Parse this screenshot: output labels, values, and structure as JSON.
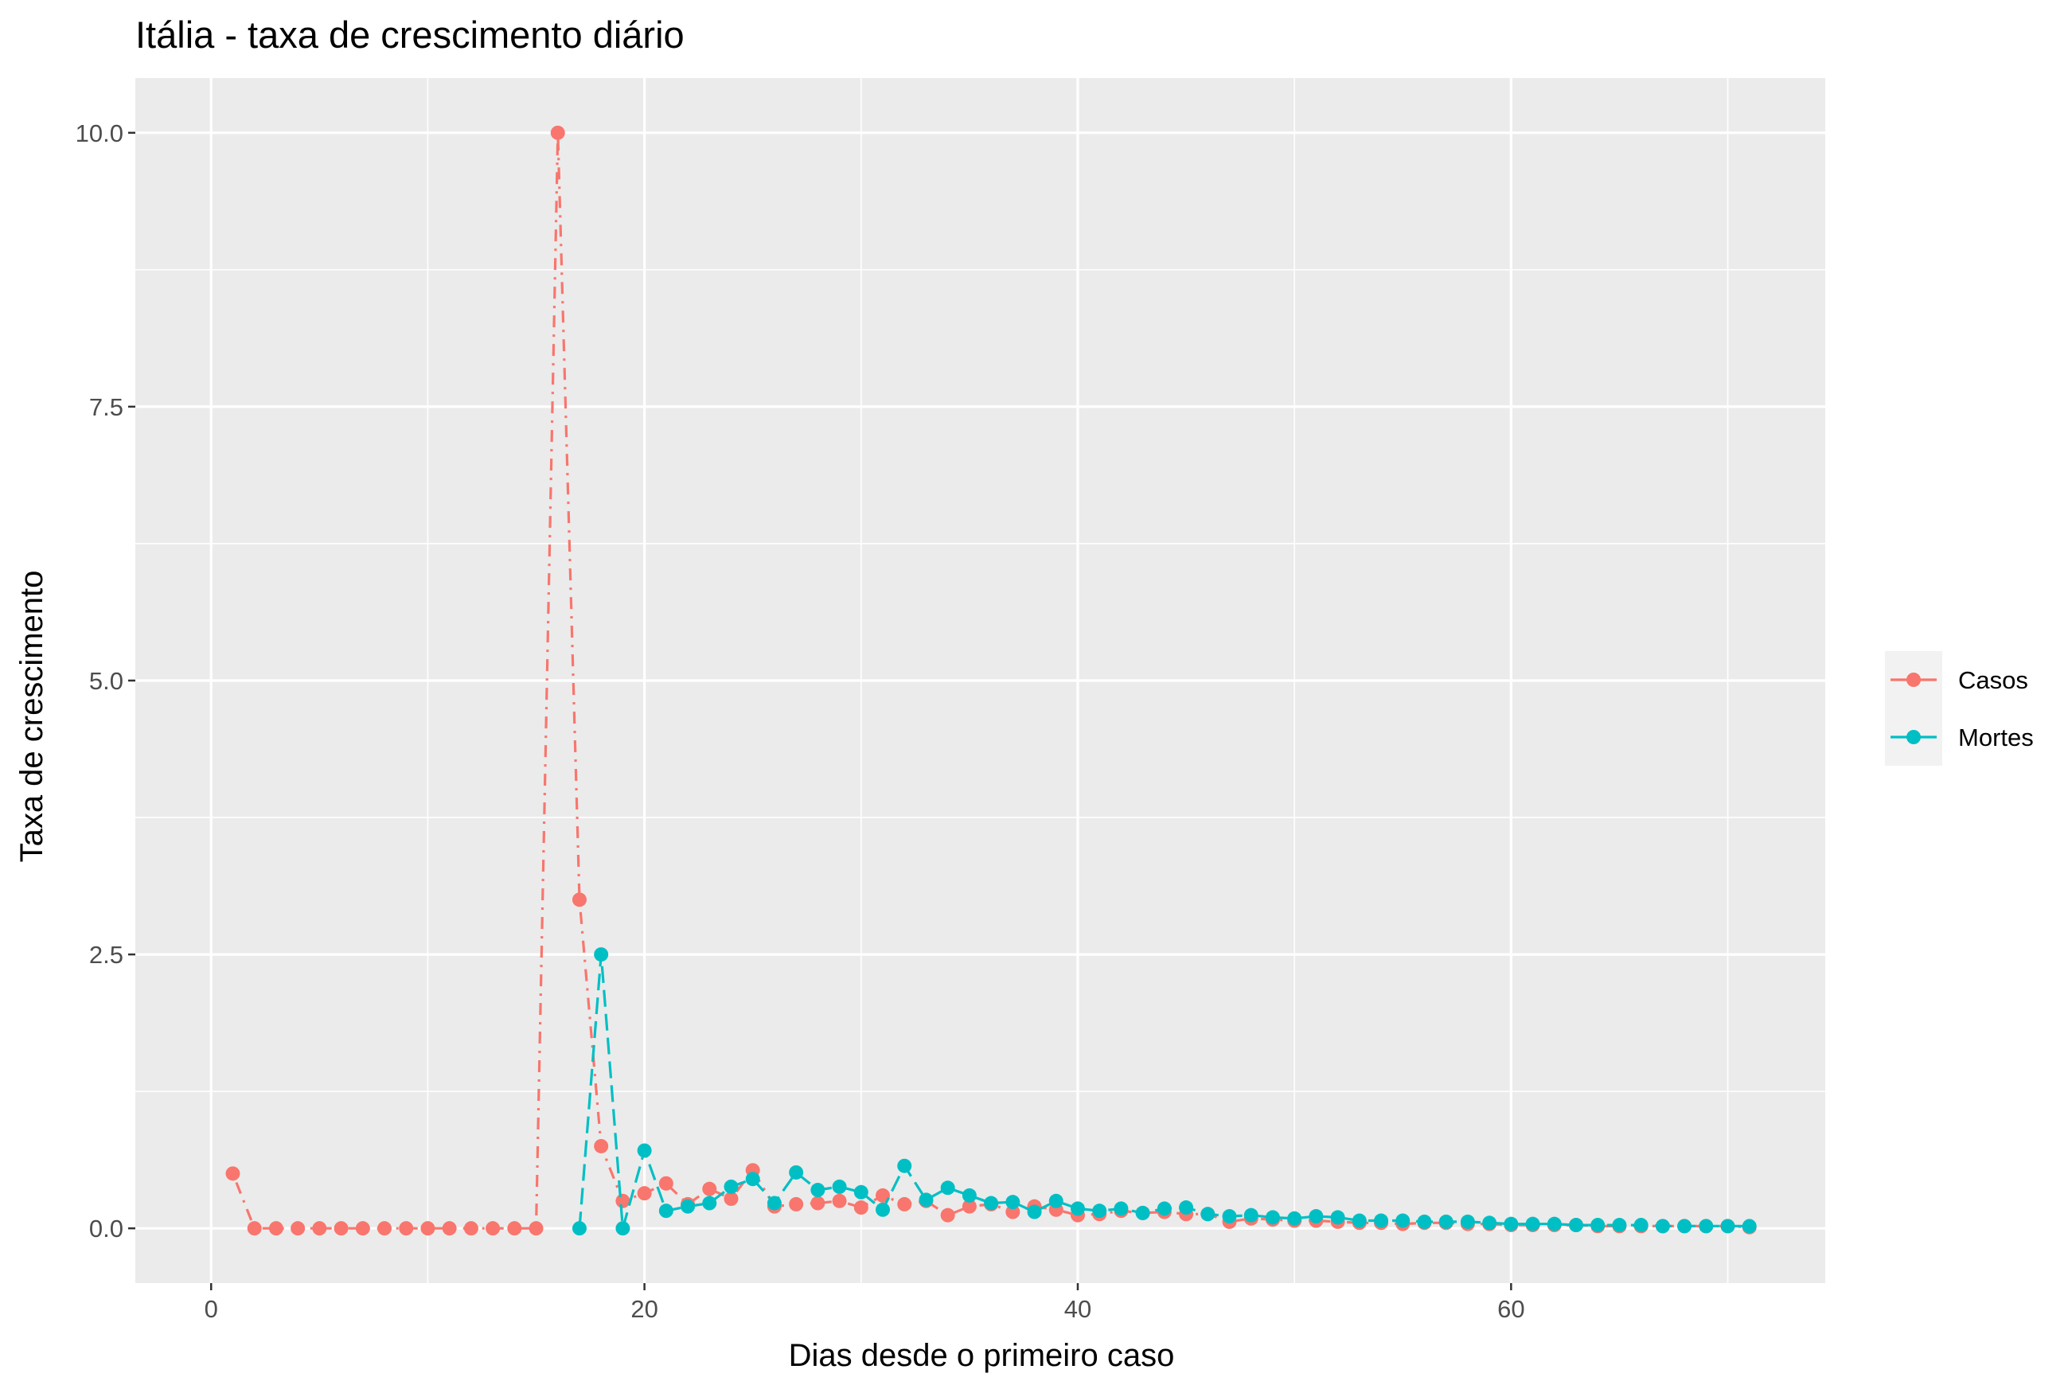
{
  "chart_data": {
    "type": "line",
    "title": "Itália - taxa de crescimento diário",
    "xlabel": "Dias desde o primeiro caso",
    "ylabel": "Taxa de crescimento",
    "xlim": [
      -3.5,
      74.5
    ],
    "ylim": [
      -0.5,
      10.5
    ],
    "x_ticks": [
      0,
      20,
      40,
      60
    ],
    "x_tick_labels": [
      "0",
      "20",
      "40",
      "60"
    ],
    "y_ticks": [
      0,
      2.5,
      5,
      7.5,
      10
    ],
    "y_tick_labels": [
      "0.0",
      "2.5",
      "5.0",
      "7.5",
      "10.0"
    ],
    "grid": true,
    "legend_position": "right",
    "series": [
      {
        "name": "Casos",
        "color": "#F8766D",
        "linetype": "dotdash",
        "x": [
          1,
          2,
          3,
          4,
          5,
          6,
          7,
          8,
          9,
          10,
          11,
          12,
          13,
          14,
          15,
          16,
          17,
          18,
          19,
          20,
          21,
          22,
          23,
          24,
          25,
          26,
          27,
          28,
          29,
          30,
          31,
          32,
          33,
          34,
          35,
          36,
          37,
          38,
          39,
          40,
          41,
          42,
          43,
          44,
          45,
          46,
          47,
          48,
          49,
          50,
          51,
          52,
          53,
          54,
          55,
          56,
          57,
          58,
          59,
          60,
          61,
          62,
          63,
          64,
          65,
          66,
          67,
          68,
          69,
          70,
          71
        ],
        "values": [
          0.5,
          0,
          0,
          0,
          0,
          0,
          0,
          0,
          0,
          0,
          0,
          0,
          0,
          0,
          0,
          10,
          3,
          0.75,
          0.25,
          0.32,
          0.41,
          0.22,
          0.36,
          0.27,
          0.53,
          0.2,
          0.22,
          0.23,
          0.25,
          0.19,
          0.3,
          0.22,
          0.25,
          0.12,
          0.2,
          0.22,
          0.15,
          0.2,
          0.17,
          0.12,
          0.13,
          0.16,
          0.14,
          0.15,
          0.13,
          0.13,
          0.06,
          0.09,
          0.08,
          0.07,
          0.07,
          0.06,
          0.05,
          0.05,
          0.04,
          0.05,
          0.05,
          0.04,
          0.04,
          0.03,
          0.03,
          0.03,
          0.03,
          0.02,
          0.02,
          0.02,
          0.02,
          0.02,
          0.02,
          0.02,
          0.01
        ]
      },
      {
        "name": "Mortes",
        "color": "#00BFC4",
        "linetype": "longdash",
        "x": [
          17,
          18,
          19,
          20,
          21,
          22,
          23,
          24,
          25,
          26,
          27,
          28,
          29,
          30,
          31,
          32,
          33,
          34,
          35,
          36,
          37,
          38,
          39,
          40,
          41,
          42,
          43,
          44,
          45,
          46,
          47,
          48,
          49,
          50,
          51,
          52,
          53,
          54,
          55,
          56,
          57,
          58,
          59,
          60,
          61,
          62,
          63,
          64,
          65,
          66,
          67,
          68,
          69,
          70,
          71
        ],
        "values": [
          0,
          2.5,
          0,
          0.71,
          0.16,
          0.2,
          0.23,
          0.38,
          0.45,
          0.23,
          0.51,
          0.35,
          0.38,
          0.33,
          0.17,
          0.57,
          0.26,
          0.37,
          0.3,
          0.23,
          0.24,
          0.15,
          0.25,
          0.18,
          0.16,
          0.18,
          0.14,
          0.18,
          0.19,
          0.13,
          0.11,
          0.12,
          0.1,
          0.09,
          0.11,
          0.1,
          0.07,
          0.07,
          0.07,
          0.06,
          0.06,
          0.06,
          0.05,
          0.04,
          0.04,
          0.04,
          0.03,
          0.03,
          0.03,
          0.03,
          0.02,
          0.02,
          0.02,
          0.02,
          0.02
        ]
      }
    ]
  }
}
